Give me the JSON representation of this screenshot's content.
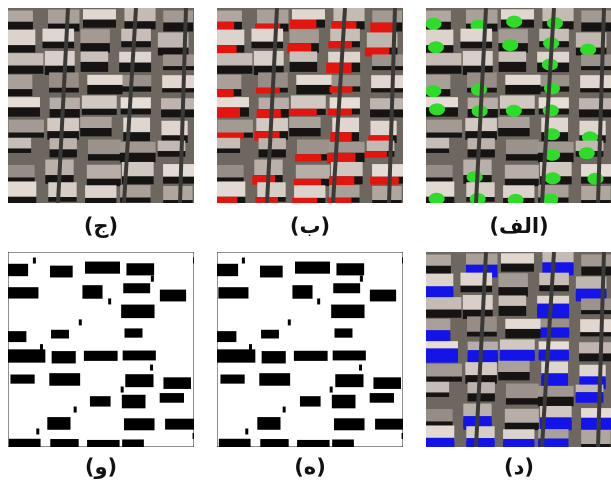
{
  "panels": [
    {
      "label": "(ج)"
    },
    {
      "label": "(ب)"
    },
    {
      "label": "(الف)"
    },
    {
      "label": "(و)"
    },
    {
      "label": "(ه)"
    },
    {
      "label": "(د)"
    }
  ]
}
